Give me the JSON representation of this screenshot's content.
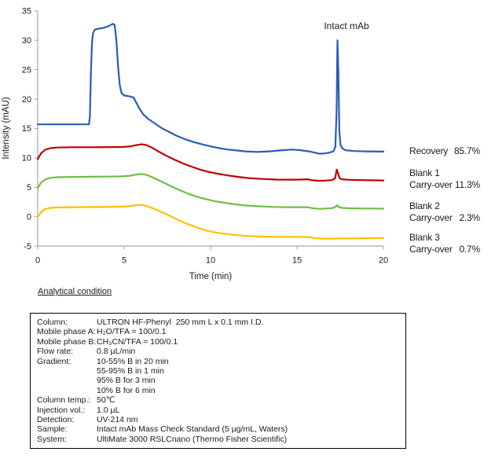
{
  "chart_data": {
    "type": "line",
    "title": "",
    "xlabel": "Time (min)",
    "ylabel": "Intensity (mAU)",
    "xlim": [
      0,
      20
    ],
    "ylim": [
      -5,
      35
    ],
    "x_ticks": [
      0,
      5,
      10,
      15,
      20
    ],
    "y_ticks": [
      -5,
      0,
      5,
      10,
      15,
      20,
      25,
      30,
      35
    ],
    "grid": false,
    "legend_position": "right",
    "axis_color": "#a6a6a6",
    "peak_annotation": {
      "text": "Intact mAb",
      "x": 17.34,
      "y": 30
    },
    "right_labels": [
      {
        "id": "recovery",
        "label": "Recovery",
        "value": "85.7%"
      },
      {
        "id": "blank-1",
        "label": "Blank 1",
        "sub_label": "Carry-over",
        "value": "11.3%"
      },
      {
        "id": "blank-2",
        "label": "Blank 2",
        "sub_label": "Carry-over",
        "value": "2.3%"
      },
      {
        "id": "blank-3",
        "label": "Blank 3",
        "sub_label": "Carry-over",
        "value": "0.7%"
      }
    ],
    "series": [
      {
        "id": "sample",
        "name": "Intact mAb sample (Recovery 85.7%)",
        "color": "#2a5db8",
        "points": [
          [
            0,
            15.7
          ],
          [
            1.0,
            15.7
          ],
          [
            2.0,
            15.7
          ],
          [
            2.97,
            15.7
          ],
          [
            3.02,
            17.0
          ],
          [
            3.08,
            25.0
          ],
          [
            3.14,
            29.5
          ],
          [
            3.2,
            31.2
          ],
          [
            3.3,
            31.8
          ],
          [
            3.5,
            31.95
          ],
          [
            3.8,
            32.1
          ],
          [
            4.1,
            32.4
          ],
          [
            4.35,
            32.8
          ],
          [
            4.45,
            32.6
          ],
          [
            4.55,
            30.0
          ],
          [
            4.65,
            25.5
          ],
          [
            4.75,
            22.3
          ],
          [
            4.85,
            21.0
          ],
          [
            5.0,
            20.6
          ],
          [
            5.3,
            20.45
          ],
          [
            5.55,
            20.25
          ],
          [
            5.7,
            19.4
          ],
          [
            5.9,
            18.3
          ],
          [
            6.1,
            17.4
          ],
          [
            6.4,
            16.6
          ],
          [
            6.8,
            15.8
          ],
          [
            7.2,
            15.0
          ],
          [
            7.6,
            14.4
          ],
          [
            8.0,
            13.8
          ],
          [
            8.5,
            13.2
          ],
          [
            9.0,
            12.7
          ],
          [
            9.5,
            12.3
          ],
          [
            10.0,
            11.95
          ],
          [
            10.5,
            11.65
          ],
          [
            11.0,
            11.4
          ],
          [
            11.5,
            11.25
          ],
          [
            12.0,
            11.1
          ],
          [
            12.7,
            11.0
          ],
          [
            13.4,
            11.1
          ],
          [
            14.0,
            11.25
          ],
          [
            14.7,
            11.4
          ],
          [
            15.2,
            11.3
          ],
          [
            15.7,
            11.1
          ],
          [
            16.0,
            10.9
          ],
          [
            16.3,
            10.7
          ],
          [
            16.6,
            10.75
          ],
          [
            16.9,
            10.9
          ],
          [
            17.1,
            11.1
          ],
          [
            17.22,
            11.8
          ],
          [
            17.29,
            18.0
          ],
          [
            17.34,
            30.0
          ],
          [
            17.39,
            25.0
          ],
          [
            17.45,
            14.5
          ],
          [
            17.52,
            12.2
          ],
          [
            17.62,
            11.6
          ],
          [
            17.8,
            11.3
          ],
          [
            18.3,
            11.15
          ],
          [
            19.0,
            11.1
          ],
          [
            20,
            11.05
          ]
        ]
      },
      {
        "id": "blank-1",
        "name": "Blank 1 (Carry-over 11.3%)",
        "color": "#c00000",
        "points": [
          [
            0,
            9.8
          ],
          [
            0.2,
            10.8
          ],
          [
            0.45,
            11.4
          ],
          [
            0.75,
            11.65
          ],
          [
            1.1,
            11.75
          ],
          [
            2.0,
            11.8
          ],
          [
            3.0,
            11.8
          ],
          [
            4.0,
            11.82
          ],
          [
            4.9,
            11.85
          ],
          [
            5.35,
            11.95
          ],
          [
            5.7,
            12.15
          ],
          [
            6.0,
            12.3
          ],
          [
            6.25,
            12.2
          ],
          [
            6.6,
            11.75
          ],
          [
            7.0,
            11.05
          ],
          [
            7.45,
            10.35
          ],
          [
            7.9,
            9.7
          ],
          [
            8.4,
            9.05
          ],
          [
            8.9,
            8.5
          ],
          [
            9.4,
            8.0
          ],
          [
            9.9,
            7.6
          ],
          [
            10.4,
            7.3
          ],
          [
            11.0,
            7.0
          ],
          [
            11.6,
            6.75
          ],
          [
            12.2,
            6.55
          ],
          [
            13.0,
            6.4
          ],
          [
            13.8,
            6.3
          ],
          [
            14.6,
            6.28
          ],
          [
            15.2,
            6.3
          ],
          [
            15.6,
            6.35
          ],
          [
            15.85,
            6.2
          ],
          [
            16.2,
            6.1
          ],
          [
            16.6,
            6.12
          ],
          [
            17.0,
            6.2
          ],
          [
            17.2,
            6.5
          ],
          [
            17.3,
            8.0
          ],
          [
            17.38,
            7.3
          ],
          [
            17.46,
            6.55
          ],
          [
            17.6,
            6.35
          ],
          [
            18.0,
            6.25
          ],
          [
            18.8,
            6.2
          ],
          [
            20,
            6.15
          ]
        ]
      },
      {
        "id": "blank-2",
        "name": "Blank 2 (Carry-over 2.3%)",
        "color": "#6fbf44",
        "points": [
          [
            0,
            4.85
          ],
          [
            0.2,
            5.8
          ],
          [
            0.45,
            6.35
          ],
          [
            0.75,
            6.6
          ],
          [
            1.1,
            6.7
          ],
          [
            2.0,
            6.75
          ],
          [
            3.0,
            6.78
          ],
          [
            4.0,
            6.8
          ],
          [
            4.9,
            6.85
          ],
          [
            5.35,
            6.95
          ],
          [
            5.7,
            7.15
          ],
          [
            6.0,
            7.25
          ],
          [
            6.3,
            7.1
          ],
          [
            6.7,
            6.6
          ],
          [
            7.2,
            5.9
          ],
          [
            7.7,
            5.2
          ],
          [
            8.2,
            4.5
          ],
          [
            8.7,
            3.9
          ],
          [
            9.2,
            3.4
          ],
          [
            9.7,
            3.0
          ],
          [
            10.2,
            2.65
          ],
          [
            10.8,
            2.35
          ],
          [
            11.4,
            2.1
          ],
          [
            12.0,
            1.9
          ],
          [
            12.8,
            1.75
          ],
          [
            13.6,
            1.65
          ],
          [
            14.4,
            1.6
          ],
          [
            15.1,
            1.6
          ],
          [
            15.6,
            1.6
          ],
          [
            15.95,
            1.4
          ],
          [
            16.3,
            1.32
          ],
          [
            16.7,
            1.38
          ],
          [
            17.05,
            1.45
          ],
          [
            17.25,
            1.7
          ],
          [
            17.33,
            1.95
          ],
          [
            17.42,
            1.6
          ],
          [
            17.6,
            1.48
          ],
          [
            18.0,
            1.42
          ],
          [
            19.0,
            1.38
          ],
          [
            20,
            1.35
          ]
        ]
      },
      {
        "id": "blank-3",
        "name": "Blank 3 (Carry-over 0.7%)",
        "color": "#ffc000",
        "points": [
          [
            0,
            -0.1
          ],
          [
            0.2,
            0.8
          ],
          [
            0.45,
            1.3
          ],
          [
            0.75,
            1.5
          ],
          [
            1.1,
            1.55
          ],
          [
            2.0,
            1.6
          ],
          [
            3.0,
            1.62
          ],
          [
            4.0,
            1.65
          ],
          [
            4.9,
            1.7
          ],
          [
            5.35,
            1.8
          ],
          [
            5.7,
            1.95
          ],
          [
            6.0,
            2.0
          ],
          [
            6.3,
            1.8
          ],
          [
            6.8,
            1.25
          ],
          [
            7.3,
            0.6
          ],
          [
            7.8,
            -0.1
          ],
          [
            8.3,
            -0.8
          ],
          [
            8.8,
            -1.4
          ],
          [
            9.3,
            -1.95
          ],
          [
            9.8,
            -2.4
          ],
          [
            10.3,
            -2.7
          ],
          [
            10.9,
            -2.95
          ],
          [
            11.5,
            -3.15
          ],
          [
            12.2,
            -3.3
          ],
          [
            13.0,
            -3.4
          ],
          [
            13.8,
            -3.45
          ],
          [
            14.6,
            -3.45
          ],
          [
            15.3,
            -3.45
          ],
          [
            15.8,
            -3.5
          ],
          [
            16.05,
            -3.7
          ],
          [
            16.5,
            -3.75
          ],
          [
            17.0,
            -3.75
          ],
          [
            17.5,
            -3.72
          ],
          [
            18.2,
            -3.7
          ],
          [
            19.0,
            -3.68
          ],
          [
            20,
            -3.65
          ]
        ]
      }
    ]
  },
  "conditions": {
    "heading": "Analytical condition",
    "rows": [
      {
        "label": "Column:",
        "value": "ULTRON HF-Phenyl  250 mm L x 0.1 mm I.D."
      },
      {
        "label": "Mobile phase A:",
        "value": "H₂O/TFA = 100/0.1"
      },
      {
        "label": "Mobile phase B:",
        "value": "CH₃CN/TFA = 100/0.1"
      },
      {
        "label": "Flow rate:",
        "value": "0.8 µL/min"
      },
      {
        "label": "Gradient:",
        "value": "10-55% B in 20 min"
      },
      {
        "label": "",
        "value": "55-95% B in 1 min"
      },
      {
        "label": "",
        "value": "95% B for 3 min"
      },
      {
        "label": "",
        "value": "10% B for 6 min"
      },
      {
        "label": "Column temp.:",
        "value": "50℃"
      },
      {
        "label": "Injection vol.:",
        "value": "1.0 µL"
      },
      {
        "label": "Detection:",
        "value": "UV-214 nm"
      },
      {
        "label": "Sample:",
        "value": "Intact mAb Mass Check Standard (5 µg/mL, Waters)"
      },
      {
        "label": "System:",
        "value": "UltiMate 3000 RSLCnano (Thermo Fisher Scientific)"
      }
    ]
  }
}
